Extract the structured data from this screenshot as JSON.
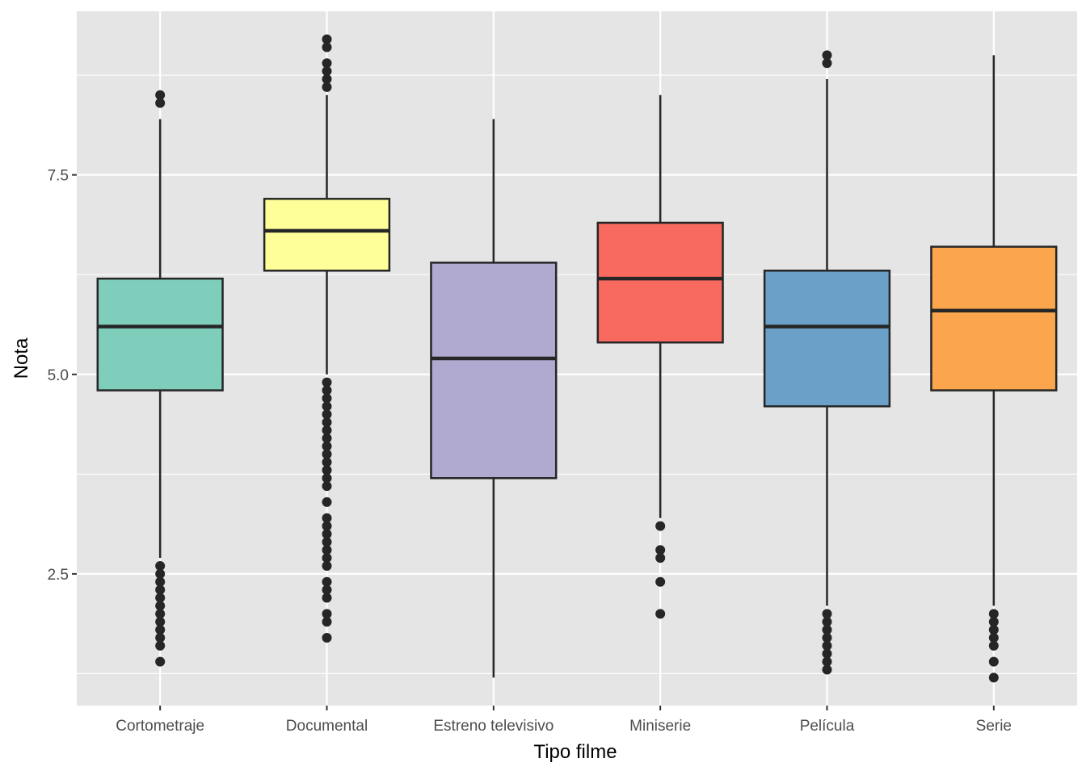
{
  "chart_data": {
    "type": "boxplot",
    "xlabel": "Tipo filme",
    "ylabel": "Nota",
    "ylim": [
      0.85,
      9.55
    ],
    "y_ticks": [
      {
        "value": 2.5,
        "label": "2.5"
      },
      {
        "value": 5.0,
        "label": "5.0"
      },
      {
        "value": 7.5,
        "label": "7.5"
      }
    ],
    "y_minor_ticks": [
      1.25,
      3.75,
      6.25,
      8.75
    ],
    "grid": true,
    "legend": "none",
    "categories": [
      "Cortometraje",
      "Documental",
      "Estreno televisivo",
      "Miniserie",
      "Película",
      "Serie"
    ],
    "boxes": [
      {
        "category": "Cortometraje",
        "color": "#7FCDBB",
        "whisker_low": 2.7,
        "q1": 4.8,
        "median": 5.6,
        "q3": 6.2,
        "whisker_high": 8.2,
        "outliers": [
          1.4,
          1.6,
          1.7,
          1.8,
          1.9,
          2.0,
          2.1,
          2.2,
          2.3,
          2.4,
          2.5,
          2.6,
          8.4,
          8.5
        ]
      },
      {
        "category": "Documental",
        "color": "#FFFF99",
        "whisker_low": 5.0,
        "q1": 6.3,
        "median": 6.8,
        "q3": 7.2,
        "whisker_high": 8.5,
        "outliers": [
          1.7,
          1.9,
          2.0,
          2.2,
          2.3,
          2.4,
          2.6,
          2.7,
          2.8,
          2.9,
          3.0,
          3.1,
          3.2,
          3.4,
          3.6,
          3.7,
          3.8,
          3.9,
          4.0,
          4.1,
          4.2,
          4.3,
          4.4,
          4.5,
          4.6,
          4.7,
          4.8,
          4.9,
          8.6,
          8.7,
          8.8,
          8.9,
          9.1,
          9.2
        ]
      },
      {
        "category": "Estreno televisivo",
        "color": "#B0AAD1",
        "whisker_low": 1.2,
        "q1": 3.7,
        "median": 5.2,
        "q3": 6.4,
        "whisker_high": 8.2,
        "outliers": []
      },
      {
        "category": "Miniserie",
        "color": "#F8695F",
        "whisker_low": 3.2,
        "q1": 5.4,
        "median": 6.2,
        "q3": 6.9,
        "whisker_high": 8.5,
        "outliers": [
          2.0,
          2.4,
          2.7,
          2.8,
          3.1
        ]
      },
      {
        "category": "Película",
        "color": "#6BA1C9",
        "whisker_low": 2.1,
        "q1": 4.6,
        "median": 5.6,
        "q3": 6.3,
        "whisker_high": 8.7,
        "outliers": [
          1.3,
          1.4,
          1.5,
          1.6,
          1.7,
          1.8,
          1.9,
          2.0,
          8.9,
          9.0
        ]
      },
      {
        "category": "Serie",
        "color": "#FBA54D",
        "whisker_low": 2.1,
        "q1": 4.8,
        "median": 5.8,
        "q3": 6.6,
        "whisker_high": 9.0,
        "outliers": [
          1.2,
          1.4,
          1.6,
          1.7,
          1.8,
          1.9,
          2.0
        ]
      }
    ]
  },
  "colors": {
    "panel_background": "#E5E5E5",
    "grid": "#FFFFFF",
    "box_outline": "#262626",
    "outlier": "#262626",
    "tick_text": "#4D4D4D"
  }
}
